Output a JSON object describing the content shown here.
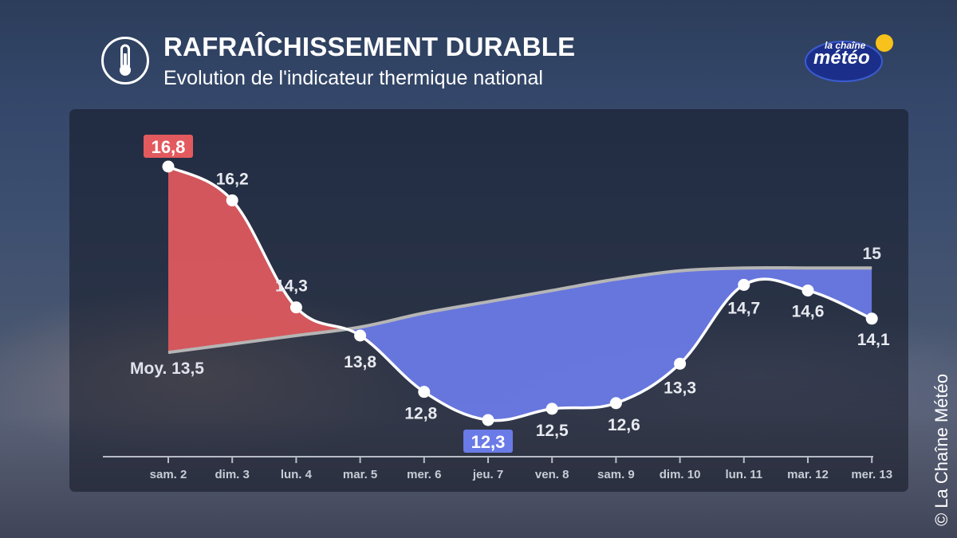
{
  "header": {
    "title": "RAFRAÎCHISSEMENT DURABLE",
    "subtitle": "Evolution de l'indicateur thermique national",
    "icon": "thermometer-icon"
  },
  "logo": {
    "line1": "la chaîne",
    "line2": "météo",
    "sun_color": "#f7c21b"
  },
  "copyright": "©  La Chaîne Météo",
  "colors": {
    "above_fill": "#e25a5e",
    "below_fill": "#6a7ae6",
    "normal_line": "#b5b5b5",
    "line": "#ffffff",
    "max_badge": "#e25a5e",
    "min_badge": "#6a7ae6"
  },
  "chart_data": {
    "type": "area",
    "categories": [
      "sam. 2",
      "dim. 3",
      "lun. 4",
      "mar. 5",
      "mer. 6",
      "jeu. 7",
      "ven. 8",
      "sam. 9",
      "dim. 10",
      "lun. 11",
      "mar. 12",
      "mer. 13"
    ],
    "series": [
      {
        "values": [
          16.8,
          16.2,
          14.3,
          13.8,
          12.8,
          12.3,
          12.5,
          12.6,
          13.3,
          14.7,
          14.6,
          14.1
        ],
        "labels": [
          "16,8",
          "16,2",
          "14,3",
          "13,8",
          "12,8",
          "12,3",
          "12,5",
          "12,6",
          "13,3",
          "14,7",
          "14,6",
          "14,1"
        ]
      },
      {
        "values": [
          13.5,
          13.65,
          13.8,
          13.95,
          14.2,
          14.4,
          14.6,
          14.8,
          14.95,
          15.0,
          15.0,
          15.0
        ]
      }
    ],
    "normal_start_label": "Moy. 13,5",
    "normal_end_label": "15",
    "max_index": 0,
    "min_index": 5,
    "ylim": [
      12.0,
      17.0
    ],
    "grid": false
  }
}
